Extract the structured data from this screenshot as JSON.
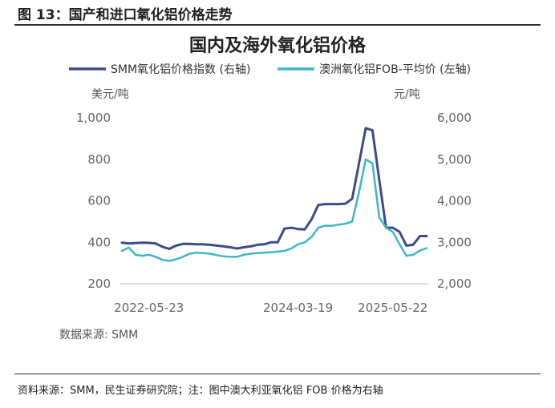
{
  "figure_caption": "图 13：国产和进口氧化铝价格走势",
  "footer_note": "资料来源：SMM，民生证券研究院；注：图中澳大利亚氧化铝 FOB 价格为右轴",
  "chart_data": {
    "type": "line",
    "title": "国内及海外氧化铝价格",
    "source": "数据来源: SMM",
    "left_axis": {
      "unit": "美元/吨",
      "ylim": [
        200,
        1000
      ],
      "ticks": [
        "200",
        "400",
        "600",
        "800",
        "1,000"
      ]
    },
    "right_axis": {
      "unit": "元/吨",
      "ylim": [
        2000,
        6000
      ],
      "ticks": [
        "2,000",
        "3,000",
        "4,000",
        "5,000",
        "6,000"
      ]
    },
    "x_ticks": [
      "2022-05-23",
      "2024-03-19",
      "2025-05-22"
    ],
    "x": [
      "2022-01",
      "2022-02",
      "2022-03",
      "2022-04",
      "2022-05",
      "2022-06",
      "2022-07",
      "2022-08",
      "2022-09",
      "2022-10",
      "2022-11",
      "2022-12",
      "2023-01",
      "2023-02",
      "2023-03",
      "2023-04",
      "2023-05",
      "2023-06",
      "2023-07",
      "2023-08",
      "2023-09",
      "2023-10",
      "2023-11",
      "2023-12",
      "2024-01",
      "2024-02",
      "2024-03",
      "2024-04",
      "2024-05",
      "2024-06",
      "2024-07",
      "2024-08",
      "2024-09",
      "2024-10",
      "2024-11",
      "2024-12",
      "2025-01",
      "2025-02",
      "2025-03",
      "2025-04",
      "2025-05",
      "2025-06",
      "2025-07",
      "2025-08",
      "2025-09",
      "2025-10"
    ],
    "series": [
      {
        "name": "SMM氧化铝价格指数 (右轴)",
        "axis": "right",
        "color": "#3f4a8a",
        "values": [
          2990,
          2970,
          2980,
          2990,
          2985,
          2970,
          2890,
          2840,
          2920,
          2960,
          2960,
          2950,
          2950,
          2940,
          2920,
          2900,
          2880,
          2850,
          2880,
          2900,
          2940,
          2950,
          3000,
          3000,
          3330,
          3350,
          3320,
          3310,
          3550,
          3900,
          3920,
          3920,
          3920,
          3930,
          4050,
          4900,
          5750,
          5700,
          4500,
          3350,
          3350,
          3250,
          2920,
          2940,
          3150,
          3150
        ]
      },
      {
        "name": "澳洲氧化铝FOB-平均价 (左轴)",
        "axis": "left",
        "color": "#3fb6c6",
        "values": [
          358,
          375,
          340,
          335,
          340,
          330,
          315,
          310,
          318,
          330,
          345,
          350,
          348,
          345,
          338,
          332,
          330,
          330,
          340,
          345,
          348,
          350,
          352,
          355,
          358,
          370,
          390,
          400,
          425,
          470,
          480,
          480,
          485,
          490,
          500,
          640,
          800,
          780,
          520,
          470,
          450,
          390,
          335,
          340,
          360,
          372
        ]
      }
    ],
    "grid": false,
    "legend_position": "top"
  }
}
